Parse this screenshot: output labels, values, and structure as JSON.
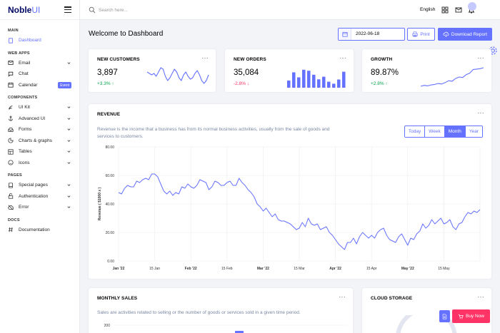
{
  "brand": {
    "noble": "Noble",
    "ui": "UI"
  },
  "topbar": {
    "search_placeholder": "Search here...",
    "language": "English"
  },
  "sidebar": {
    "main_label": "MAIN",
    "dashboard": "Dashboard",
    "webapps_label": "WEB APPS",
    "email": "Email",
    "chat": "Chat",
    "calendar": "Calendar",
    "event_badge": "Event",
    "components_label": "COMPONENTS",
    "ui_kit": "UI Kit",
    "advanced_ui": "Advanced UI",
    "forms": "Forms",
    "charts_graphs": "Charts & graphs",
    "tables": "Tables",
    "icons": "Icons",
    "pages_label": "PAGES",
    "special_pages": "Special pages",
    "authentication": "Authentication",
    "error": "Error",
    "docs_label": "DOCS",
    "documentation": "Documentation"
  },
  "header": {
    "title": "Welcome to Dashboard",
    "date": "2022-06-18",
    "print_label": "Print",
    "download_label": "Download Report"
  },
  "stats": {
    "customers": {
      "title": "NEW CUSTOMERS",
      "value": "3,897",
      "delta": "+3.3%"
    },
    "orders": {
      "title": "NEW ORDERS",
      "value": "35,084",
      "delta": "-2.8%"
    },
    "growth": {
      "title": "GROWTH",
      "value": "89.87%",
      "delta": "+2.8%"
    }
  },
  "revenue": {
    "title": "REVENUE",
    "description": "Revenue is the income that a business has from its normal business activities, usually from the sale of goods and services to customers.",
    "ranges": [
      "Today",
      "Week",
      "Month",
      "Year"
    ],
    "active_range": "Month"
  },
  "monthly_sales": {
    "title": "MONTHLY SALES",
    "description": "Sales are activities related to selling or the number of goods or services sold in a given time period.",
    "y_top": "200"
  },
  "cloud_storage": {
    "title": "CLOUD STORAGE"
  },
  "fab": {
    "buy_label": "Buy Now"
  },
  "colors": {
    "primary": "#6571ff",
    "success": "#05a34a",
    "danger": "#ff3366"
  },
  "chart_data": [
    {
      "type": "line",
      "ylabel": "Revenue ( $1000 x )",
      "ylim": [
        0,
        80
      ],
      "yticks": [
        "0.00",
        "20.00",
        "40.00",
        "60.00",
        "80.00"
      ],
      "xticks": [
        "Jan '22",
        "15 Jan",
        "Feb '22",
        "15 Feb",
        "Mar '22",
        "15 Mar",
        "Apr '22",
        "15 Apr",
        "May '22",
        "15 May"
      ],
      "xticks_bold": [
        true,
        false,
        true,
        false,
        true,
        false,
        true,
        false,
        true,
        false
      ],
      "grid": true,
      "values": [
        48,
        47,
        51,
        53,
        52,
        52,
        56,
        55,
        57,
        58,
        57,
        61,
        61,
        59,
        54,
        49,
        47,
        49,
        46,
        48,
        47,
        52,
        51,
        54,
        52,
        51,
        53,
        57,
        56,
        55,
        50,
        52,
        56,
        55,
        53,
        53,
        55,
        56,
        53,
        53,
        58,
        55,
        53,
        50,
        48,
        45,
        40,
        38,
        35,
        37,
        34,
        31,
        33,
        29,
        28,
        28,
        27,
        26,
        24,
        22,
        23,
        27,
        24,
        30,
        26,
        25,
        26,
        22,
        23,
        24,
        20,
        18,
        15,
        12,
        10,
        8,
        13,
        13,
        16,
        12,
        17,
        20,
        18,
        16,
        18,
        16,
        20,
        22,
        23,
        18,
        15,
        14,
        13,
        17,
        19,
        15,
        11,
        16,
        15,
        19,
        21,
        26,
        23,
        25,
        29,
        26,
        28,
        30,
        26,
        27,
        29,
        24,
        22,
        26,
        27,
        31,
        34,
        33,
        35,
        34,
        36
      ]
    },
    {
      "type": "line",
      "values": [
        44,
        43,
        42,
        43,
        41,
        44,
        47,
        46,
        41,
        38,
        40,
        43,
        46,
        44,
        40,
        38,
        42,
        44,
        41,
        39,
        40,
        43,
        45,
        42,
        38,
        36,
        38,
        42
      ]
    },
    {
      "type": "bar",
      "values": [
        36,
        77,
        52,
        90,
        85,
        65,
        42,
        55,
        30,
        20,
        41,
        80
      ]
    },
    {
      "type": "line",
      "values": [
        30,
        32,
        31,
        33,
        34,
        36,
        35,
        38,
        42,
        41,
        47,
        50,
        49,
        55,
        58,
        66,
        67,
        68,
        70
      ]
    }
  ]
}
